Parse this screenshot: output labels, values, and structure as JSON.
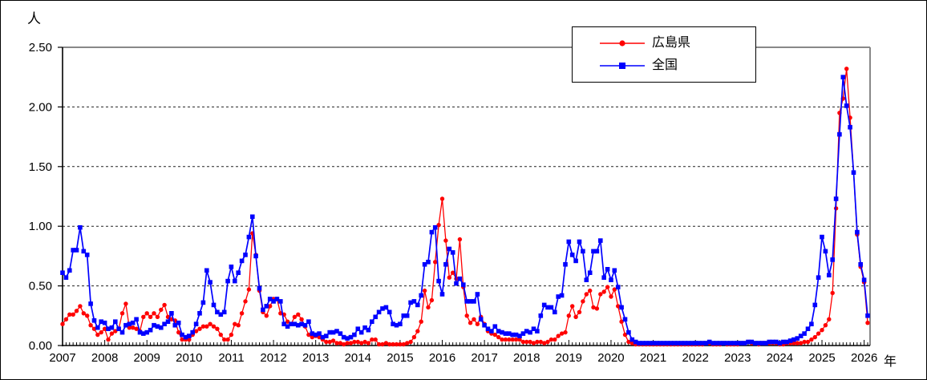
{
  "axis_units": {
    "y": "人",
    "x": "年"
  },
  "legend": {
    "items": [
      {
        "label": "広島県",
        "color": "#ff0000",
        "marker": "circle"
      },
      {
        "label": "全国",
        "color": "#0000ff",
        "marker": "square"
      }
    ]
  },
  "chart_data": {
    "type": "line",
    "title": "",
    "xlabel": "年",
    "ylabel": "人",
    "ylim": [
      0,
      2.5
    ],
    "y_tick_labels": [
      "0.00",
      "0.50",
      "1.00",
      "1.50",
      "2.00",
      "2.50"
    ],
    "x_tick_labels": [
      "2007",
      "2008",
      "2009",
      "2010",
      "2011",
      "2012",
      "2013",
      "2014",
      "2015",
      "2016",
      "2017",
      "2018",
      "2019",
      "2020",
      "2021",
      "2022",
      "2023",
      "2024",
      "2025",
      "2026"
    ],
    "x_sampling": "monthly",
    "x_start": "2007-01",
    "grid": "horizontal dashed",
    "legend_position": "top-center",
    "series": [
      {
        "name": "広島県",
        "color": "#ff0000",
        "marker": "circle",
        "values": [
          0.18,
          0.22,
          0.26,
          0.26,
          0.29,
          0.33,
          0.27,
          0.25,
          0.17,
          0.14,
          0.09,
          0.11,
          0.14,
          0.05,
          0.1,
          0.12,
          0.14,
          0.27,
          0.35,
          0.15,
          0.15,
          0.14,
          0.12,
          0.24,
          0.27,
          0.24,
          0.27,
          0.24,
          0.3,
          0.34,
          0.24,
          0.22,
          0.21,
          0.11,
          0.05,
          0.05,
          0.05,
          0.09,
          0.12,
          0.14,
          0.16,
          0.16,
          0.18,
          0.16,
          0.14,
          0.09,
          0.05,
          0.05,
          0.09,
          0.18,
          0.17,
          0.27,
          0.37,
          0.47,
          0.94,
          0.76,
          0.46,
          0.28,
          0.25,
          0.33,
          0.39,
          0.39,
          0.27,
          0.26,
          0.2,
          0.18,
          0.24,
          0.26,
          0.22,
          0.16,
          0.09,
          0.07,
          0.08,
          0.07,
          0.05,
          0.03,
          0.03,
          0.04,
          0.02,
          0.02,
          0.01,
          0.02,
          0.02,
          0.03,
          0.03,
          0.02,
          0.03,
          0.02,
          0.05,
          0.05,
          0.01,
          0.01,
          0.02,
          0.01,
          0.01,
          0.01,
          0.01,
          0.01,
          0.02,
          0.03,
          0.07,
          0.12,
          0.2,
          0.46,
          0.32,
          0.38,
          0.7,
          1.01,
          1.23,
          0.88,
          0.57,
          0.61,
          0.56,
          0.89,
          0.49,
          0.25,
          0.19,
          0.22,
          0.18,
          0.24,
          0.18,
          0.12,
          0.1,
          0.09,
          0.07,
          0.05,
          0.05,
          0.05,
          0.05,
          0.05,
          0.05,
          0.03,
          0.03,
          0.03,
          0.02,
          0.03,
          0.03,
          0.02,
          0.03,
          0.05,
          0.05,
          0.08,
          0.1,
          0.11,
          0.25,
          0.33,
          0.24,
          0.28,
          0.37,
          0.43,
          0.46,
          0.32,
          0.31,
          0.43,
          0.45,
          0.49,
          0.41,
          0.47,
          0.33,
          0.2,
          0.09,
          0.03,
          0.02,
          0.01,
          0.01,
          0.01,
          0.01,
          0.01,
          0.01,
          0.01,
          0.01,
          0.01,
          0.01,
          0.01,
          0.01,
          0.01,
          0.01,
          0.01,
          0.01,
          0.01,
          0.01,
          0.01,
          0.01,
          0.02,
          0.02,
          0.01,
          0.01,
          0.01,
          0.02,
          0.01,
          0.01,
          0.01,
          0.01,
          0.02,
          0.02,
          0.03,
          0.02,
          0.02,
          0.01,
          0.02,
          0.02,
          0.02,
          0.02,
          0.02,
          0.01,
          0.01,
          0.02,
          0.02,
          0.02,
          0.02,
          0.02,
          0.03,
          0.03,
          0.05,
          0.07,
          0.1,
          0.13,
          0.17,
          0.22,
          0.44,
          1.15,
          1.95,
          2.07,
          2.32,
          1.91,
          1.45,
          0.93,
          0.66,
          0.53,
          0.19
        ]
      },
      {
        "name": "全国",
        "color": "#0000ff",
        "marker": "square",
        "values": [
          0.61,
          0.57,
          0.63,
          0.8,
          0.8,
          0.99,
          0.79,
          0.76,
          0.35,
          0.21,
          0.15,
          0.2,
          0.19,
          0.14,
          0.15,
          0.2,
          0.14,
          0.11,
          0.17,
          0.18,
          0.19,
          0.22,
          0.11,
          0.1,
          0.11,
          0.13,
          0.17,
          0.16,
          0.15,
          0.18,
          0.2,
          0.27,
          0.17,
          0.19,
          0.09,
          0.07,
          0.08,
          0.11,
          0.18,
          0.27,
          0.36,
          0.63,
          0.53,
          0.34,
          0.28,
          0.26,
          0.28,
          0.54,
          0.66,
          0.54,
          0.61,
          0.71,
          0.76,
          0.91,
          1.08,
          0.75,
          0.48,
          0.3,
          0.33,
          0.39,
          0.37,
          0.39,
          0.37,
          0.18,
          0.16,
          0.18,
          0.18,
          0.17,
          0.18,
          0.17,
          0.2,
          0.1,
          0.09,
          0.1,
          0.07,
          0.08,
          0.11,
          0.11,
          0.12,
          0.1,
          0.07,
          0.06,
          0.07,
          0.09,
          0.14,
          0.11,
          0.15,
          0.13,
          0.2,
          0.24,
          0.28,
          0.31,
          0.32,
          0.28,
          0.18,
          0.17,
          0.18,
          0.25,
          0.25,
          0.36,
          0.37,
          0.34,
          0.42,
          0.68,
          0.7,
          0.95,
          0.99,
          0.54,
          0.43,
          0.68,
          0.81,
          0.78,
          0.52,
          0.56,
          0.51,
          0.37,
          0.37,
          0.37,
          0.43,
          0.22,
          0.17,
          0.14,
          0.12,
          0.16,
          0.12,
          0.11,
          0.1,
          0.1,
          0.09,
          0.09,
          0.08,
          0.1,
          0.12,
          0.11,
          0.14,
          0.12,
          0.25,
          0.34,
          0.32,
          0.32,
          0.28,
          0.41,
          0.42,
          0.68,
          0.87,
          0.76,
          0.71,
          0.87,
          0.79,
          0.55,
          0.61,
          0.79,
          0.79,
          0.88,
          0.57,
          0.64,
          0.55,
          0.63,
          0.49,
          0.32,
          0.22,
          0.11,
          0.05,
          0.03,
          0.02,
          0.02,
          0.02,
          0.02,
          0.02,
          0.02,
          0.02,
          0.02,
          0.02,
          0.02,
          0.02,
          0.02,
          0.02,
          0.02,
          0.02,
          0.02,
          0.02,
          0.02,
          0.02,
          0.02,
          0.03,
          0.02,
          0.02,
          0.02,
          0.02,
          0.02,
          0.02,
          0.02,
          0.02,
          0.02,
          0.02,
          0.03,
          0.03,
          0.02,
          0.02,
          0.02,
          0.02,
          0.03,
          0.03,
          0.03,
          0.02,
          0.03,
          0.03,
          0.04,
          0.05,
          0.06,
          0.08,
          0.1,
          0.14,
          0.18,
          0.34,
          0.57,
          0.91,
          0.79,
          0.59,
          0.72,
          1.23,
          1.77,
          2.25,
          2.01,
          1.83,
          1.45,
          0.95,
          0.68,
          0.55,
          0.25
        ]
      }
    ]
  }
}
